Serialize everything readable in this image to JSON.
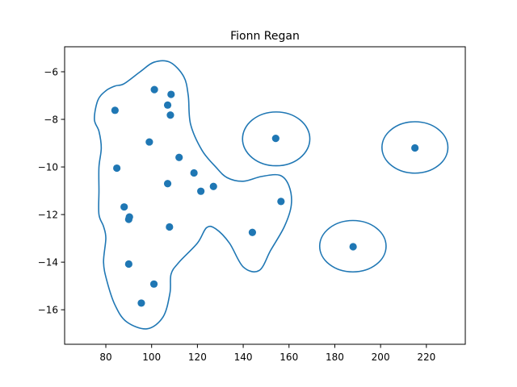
{
  "chart_data": {
    "type": "scatter",
    "title": "Fionn Regan",
    "xlabel": "",
    "ylabel": "",
    "xlim": [
      62,
      237
    ],
    "ylim": [
      -17.45,
      -4.95
    ],
    "x_ticks": [
      80,
      100,
      120,
      140,
      160,
      180,
      200,
      220
    ],
    "y_ticks": [
      -6,
      -8,
      -10,
      -12,
      -14,
      -16
    ],
    "grid": false,
    "colors": {
      "series": "#1f77b4"
    },
    "series": [
      {
        "points": [
          [
            101.2,
            -6.75
          ],
          [
            108.5,
            -6.95
          ],
          [
            84.0,
            -7.62
          ],
          [
            107.0,
            -7.4
          ],
          [
            108.2,
            -7.82
          ],
          [
            99.0,
            -8.95
          ],
          [
            112.0,
            -9.6
          ],
          [
            84.8,
            -10.05
          ],
          [
            118.5,
            -10.25
          ],
          [
            107.0,
            -10.7
          ],
          [
            127.0,
            -10.82
          ],
          [
            121.5,
            -11.02
          ],
          [
            156.5,
            -11.45
          ],
          [
            88.0,
            -11.68
          ],
          [
            90.3,
            -12.1
          ],
          [
            90.0,
            -12.2
          ],
          [
            107.8,
            -12.52
          ],
          [
            144.0,
            -12.75
          ],
          [
            90.0,
            -14.08
          ],
          [
            101.0,
            -14.92
          ],
          [
            95.5,
            -15.72
          ],
          [
            154.2,
            -8.8
          ],
          [
            215.0,
            -9.2
          ],
          [
            188.0,
            -13.35
          ]
        ]
      }
    ],
    "contours": [
      {
        "shape": "blob",
        "path": [
          [
            88,
            -6.5
          ],
          [
            95,
            -6.0
          ],
          [
            101,
            -5.6
          ],
          [
            108,
            -5.6
          ],
          [
            114,
            -6.2
          ],
          [
            116,
            -7.0
          ],
          [
            117,
            -8.2
          ],
          [
            122,
            -9.3
          ],
          [
            128,
            -10.0
          ],
          [
            133,
            -10.45
          ],
          [
            140,
            -10.6
          ],
          [
            148,
            -10.4
          ],
          [
            156,
            -10.35
          ],
          [
            160,
            -10.8
          ],
          [
            161,
            -11.6
          ],
          [
            158,
            -12.5
          ],
          [
            152,
            -13.5
          ],
          [
            147,
            -14.35
          ],
          [
            140,
            -14.2
          ],
          [
            134,
            -13.2
          ],
          [
            128,
            -12.6
          ],
          [
            124,
            -12.55
          ],
          [
            120,
            -13.2
          ],
          [
            112,
            -14.0
          ],
          [
            108.5,
            -14.5
          ],
          [
            108,
            -15.3
          ],
          [
            105,
            -16.3
          ],
          [
            98,
            -16.8
          ],
          [
            89,
            -16.5
          ],
          [
            84,
            -15.8
          ],
          [
            80.5,
            -14.8
          ],
          [
            79,
            -14.0
          ],
          [
            80,
            -13.0
          ],
          [
            79,
            -12.5
          ],
          [
            77,
            -12.0
          ],
          [
            77,
            -11.0
          ],
          [
            77,
            -10.0
          ],
          [
            78,
            -9.2
          ],
          [
            77,
            -8.5
          ],
          [
            75,
            -8.0
          ],
          [
            76.5,
            -7.2
          ],
          [
            80,
            -6.8
          ],
          [
            84,
            -6.6
          ]
        ]
      },
      {
        "shape": "ellipse",
        "center": [
          154.4,
          -8.82
        ],
        "rx": 14.7,
        "ry": 1.13
      },
      {
        "shape": "ellipse",
        "center": [
          215.0,
          -9.18
        ],
        "rx": 14.4,
        "ry": 1.08
      },
      {
        "shape": "ellipse",
        "center": [
          187.9,
          -13.33
        ],
        "rx": 14.5,
        "ry": 1.08
      }
    ]
  }
}
